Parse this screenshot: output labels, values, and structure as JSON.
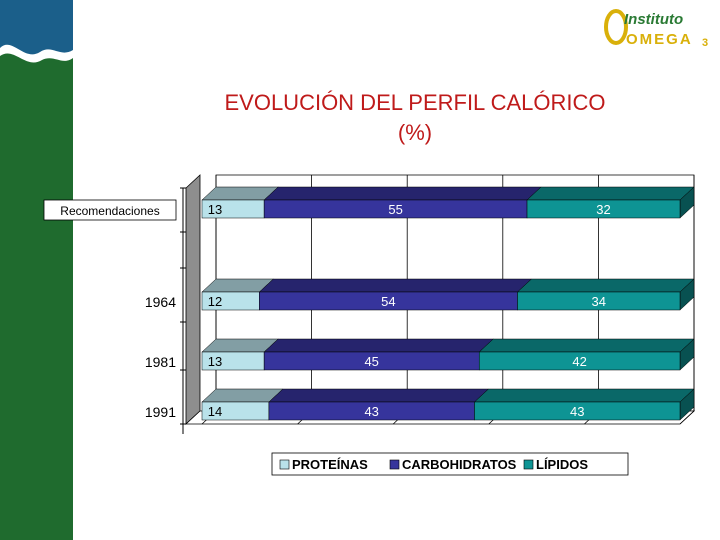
{
  "logo": {
    "line1": "Instituto",
    "line2": "OMEGA",
    "sub": "3",
    "letter": "O"
  },
  "colors": {
    "band": "#1f6b2e",
    "title": "#bf1a1a",
    "proteinas": "#b9e2ea",
    "carbohidratos": "#36349c",
    "lipidos": "#0e9494",
    "wall": "#8e8e8e",
    "logo_green": "#2a7a34",
    "logo_yellow": "#d9b00a"
  },
  "chart_data": {
    "type": "bar",
    "orientation": "horizontal",
    "stacked": true,
    "percent": true,
    "title_lines": [
      "EVOLUCIÓN DEL PERFIL CALÓRICO",
      "(%)"
    ],
    "categories": [
      "Recomendaciones",
      "1964",
      "1981",
      "1991"
    ],
    "series": [
      {
        "name": "PROTEÍNAS",
        "values": [
          13,
          12,
          13,
          14
        ]
      },
      {
        "name": "CARBOHIDRATOS",
        "values": [
          55,
          54,
          45,
          43
        ]
      },
      {
        "name": "LÍPIDOS",
        "values": [
          32,
          34,
          42,
          43
        ]
      }
    ],
    "xlim": [
      0,
      100
    ],
    "grid": true,
    "legend_position": "bottom"
  }
}
